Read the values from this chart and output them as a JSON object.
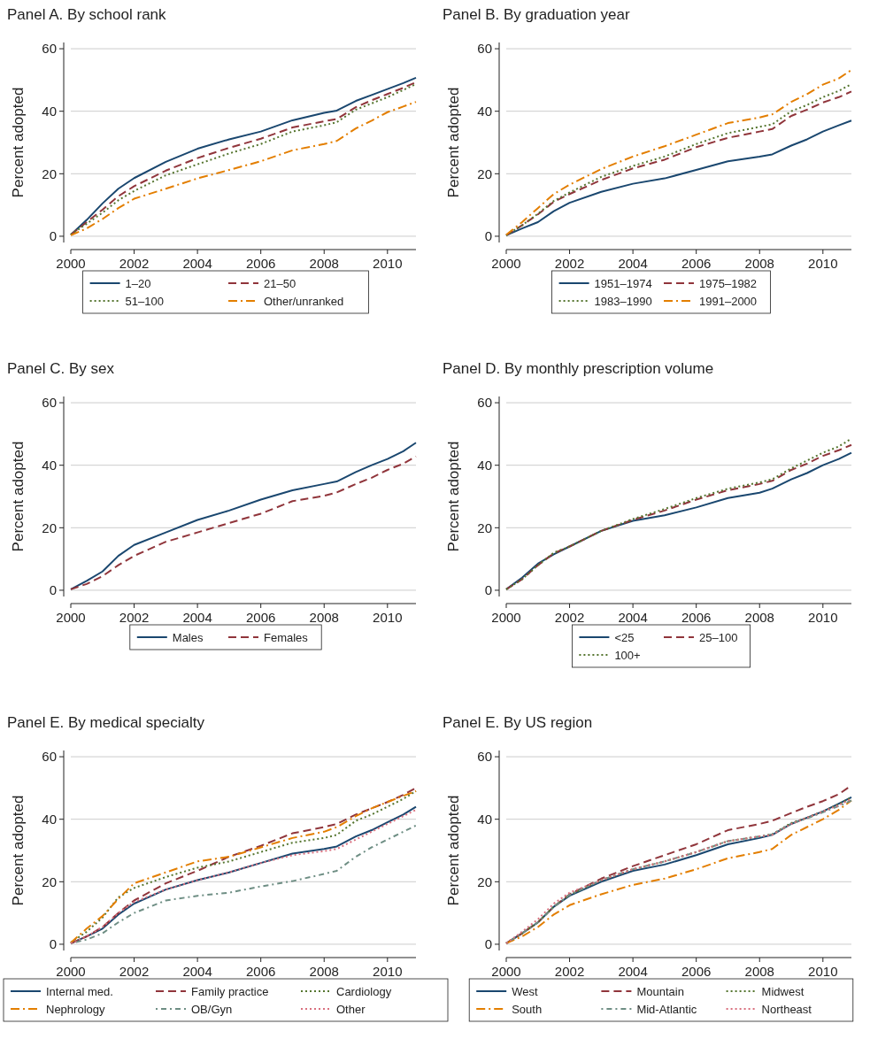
{
  "chart_data": [
    {
      "type": "line",
      "title": "Panel A. By school rank",
      "ylabel": "Percent adopted",
      "x": [
        2000,
        2000.5,
        2001,
        2001.5,
        2002,
        2003,
        2004,
        2005,
        2006,
        2007,
        2008,
        2008.4,
        2009,
        2009.5,
        2010,
        2010.5,
        2010.9
      ],
      "xlim": [
        2000,
        2010.9
      ],
      "xticks": [
        2000,
        2002,
        2004,
        2006,
        2008,
        2010
      ],
      "ylim": [
        -2,
        62
      ],
      "yticks": [
        0,
        20,
        40,
        60
      ],
      "grid": "y",
      "legend": "bottom",
      "series": [
        {
          "name": "1–20",
          "color": "#1a476f",
          "line_style": "solid",
          "values": [
            0.5,
            5.2,
            10.5,
            15.2,
            18.6,
            23.8,
            28,
            31,
            33.5,
            37.1,
            39.5,
            40.2,
            43.3,
            45.2,
            47.1,
            49,
            50.7
          ]
        },
        {
          "name": "21–50",
          "color": "#90353b",
          "line_style": "dashed",
          "values": [
            0.5,
            4.5,
            8.5,
            12.8,
            16,
            21,
            25,
            28.3,
            31.2,
            34.8,
            36.8,
            37.5,
            41.3,
            43.5,
            45.5,
            47.5,
            49.3
          ]
        },
        {
          "name": "51–100",
          "color": "#55752f",
          "line_style": "dotted",
          "values": [
            0.5,
            4,
            7.5,
            11.5,
            14.5,
            19.5,
            23,
            26.5,
            29.5,
            33.5,
            35.5,
            36.5,
            40.5,
            42.5,
            44.5,
            46.8,
            48.7
          ]
        },
        {
          "name": "Other/unranked",
          "color": "#e37e00",
          "line_style": "dashdot",
          "values": [
            0.3,
            2.5,
            5.5,
            9,
            12,
            15.2,
            18.5,
            21.2,
            24,
            27.5,
            29.5,
            30.5,
            34.5,
            37,
            39.7,
            41.5,
            43
          ]
        }
      ]
    },
    {
      "type": "line",
      "title": "Panel B. By graduation year",
      "ylabel": "Percent adopted",
      "x": [
        2000,
        2000.5,
        2001,
        2001.5,
        2002,
        2003,
        2004,
        2005,
        2006,
        2007,
        2008,
        2008.4,
        2009,
        2009.5,
        2010,
        2010.5,
        2010.9
      ],
      "xlim": [
        2000,
        2010.9
      ],
      "xticks": [
        2000,
        2002,
        2004,
        2006,
        2008,
        2010
      ],
      "ylim": [
        -2,
        62
      ],
      "yticks": [
        0,
        20,
        40,
        60
      ],
      "grid": "y",
      "legend": "bottom",
      "series": [
        {
          "name": "1951–1974",
          "color": "#1a476f",
          "line_style": "solid",
          "values": [
            0.3,
            2.5,
            4.5,
            8,
            10.7,
            14.2,
            16.8,
            18.5,
            21.2,
            24,
            25.5,
            26.2,
            29,
            31,
            33.5,
            35.5,
            37
          ]
        },
        {
          "name": "1975–1982",
          "color": "#90353b",
          "line_style": "dashed",
          "values": [
            0.3,
            3.5,
            7,
            11,
            13.5,
            18,
            21.7,
            24.5,
            28.5,
            31.5,
            33.5,
            34.3,
            38.5,
            40.5,
            42.8,
            44.5,
            46.3
          ]
        },
        {
          "name": "1983–1990",
          "color": "#55752f",
          "line_style": "dotted",
          "values": [
            0.3,
            3.5,
            7.2,
            11.3,
            14,
            19,
            22.5,
            25.5,
            29.5,
            33,
            35,
            35.8,
            40,
            42,
            44.5,
            46.5,
            48.7
          ]
        },
        {
          "name": "1991–2000",
          "color": "#e37e00",
          "line_style": "dashdot",
          "values": [
            0.5,
            4.5,
            9,
            13.5,
            16.5,
            21.5,
            25.5,
            28.8,
            32.5,
            36.2,
            38,
            39,
            43,
            45.5,
            48.5,
            50.5,
            53.2
          ]
        }
      ]
    },
    {
      "type": "line",
      "title": "Panel C. By sex",
      "ylabel": "Percent adopted",
      "x": [
        2000,
        2000.5,
        2001,
        2001.5,
        2002,
        2003,
        2004,
        2005,
        2006,
        2007,
        2008,
        2008.4,
        2009,
        2009.5,
        2010,
        2010.5,
        2010.9
      ],
      "xlim": [
        2000,
        2010.9
      ],
      "xticks": [
        2000,
        2002,
        2004,
        2006,
        2008,
        2010
      ],
      "ylim": [
        -2,
        62
      ],
      "yticks": [
        0,
        20,
        40,
        60
      ],
      "grid": "y",
      "legend": "bottom",
      "series": [
        {
          "name": "Males",
          "color": "#1a476f",
          "line_style": "solid",
          "values": [
            0.3,
            3,
            6,
            11,
            14.5,
            18.5,
            22.5,
            25.5,
            29,
            32,
            34,
            34.8,
            37.8,
            40,
            42,
            44.5,
            47.2
          ]
        },
        {
          "name": "Females",
          "color": "#90353b",
          "line_style": "dashed",
          "values": [
            0.3,
            2,
            4.5,
            8,
            11,
            15.5,
            18.5,
            21.5,
            24.5,
            28.5,
            30.2,
            31.3,
            34,
            36,
            38.5,
            40.5,
            42.8
          ]
        }
      ]
    },
    {
      "type": "line",
      "title": "Panel D. By monthly prescription volume",
      "ylabel": "Percent adopted",
      "x": [
        2000,
        2000.5,
        2001,
        2001.5,
        2002,
        2003,
        2004,
        2005,
        2006,
        2007,
        2008,
        2008.4,
        2009,
        2009.5,
        2010,
        2010.5,
        2010.9
      ],
      "xlim": [
        2000,
        2010.9
      ],
      "xticks": [
        2000,
        2002,
        2004,
        2006,
        2008,
        2010
      ],
      "ylim": [
        -2,
        62
      ],
      "yticks": [
        0,
        20,
        40,
        60
      ],
      "grid": "y",
      "legend": "bottom",
      "series": [
        {
          "name": "<25",
          "color": "#1a476f",
          "line_style": "solid",
          "values": [
            0.3,
            4,
            8.5,
            11.5,
            14,
            19,
            22.2,
            24,
            26.5,
            29.5,
            31.2,
            32.5,
            35.5,
            37.5,
            40,
            42,
            44
          ]
        },
        {
          "name": "25–100",
          "color": "#90353b",
          "line_style": "dashed",
          "values": [
            0.3,
            3.5,
            8,
            11.8,
            14,
            19,
            22.5,
            25.5,
            29,
            32,
            34,
            35,
            38.5,
            40.5,
            43,
            44.8,
            46.5
          ]
        },
        {
          "name": "100+",
          "color": "#55752f",
          "line_style": "dotted",
          "values": [
            0.3,
            3.5,
            8,
            12,
            14,
            19,
            22.8,
            26,
            29.5,
            32.5,
            34.5,
            35.5,
            39,
            41.5,
            44,
            46,
            48.5
          ]
        }
      ]
    },
    {
      "type": "line",
      "title": "Panel E. By medical specialty",
      "ylabel": "Percent adopted",
      "x": [
        2000,
        2000.5,
        2001,
        2001.5,
        2002,
        2003,
        2004,
        2005,
        2006,
        2007,
        2008,
        2008.4,
        2009,
        2009.5,
        2010,
        2010.5,
        2010.9
      ],
      "xlim": [
        2000,
        2010.9
      ],
      "xticks": [
        2000,
        2002,
        2004,
        2006,
        2008,
        2010
      ],
      "ylim": [
        -2,
        62
      ],
      "yticks": [
        0,
        20,
        40,
        60
      ],
      "grid": "y",
      "legend": "bottom",
      "series": [
        {
          "name": "Internal med.",
          "color": "#1a476f",
          "line_style": "solid",
          "values": [
            0.3,
            2.5,
            5,
            9.5,
            13,
            17.5,
            20.5,
            23,
            26,
            29,
            30.5,
            31.3,
            34.5,
            36.5,
            39,
            41.5,
            44
          ]
        },
        {
          "name": "Family practice",
          "color": "#90353b",
          "line_style": "dashed",
          "values": [
            0.3,
            2.5,
            5.5,
            10,
            14,
            19.5,
            23.5,
            28,
            31.5,
            35.5,
            37.5,
            38.5,
            41.5,
            43.5,
            45.5,
            47.8,
            50
          ]
        },
        {
          "name": "Cardiology",
          "color": "#55752f",
          "line_style": "dotted",
          "values": [
            0.5,
            4,
            8.5,
            15,
            18,
            21.5,
            24.5,
            26.5,
            29.5,
            32.5,
            34,
            35,
            39.5,
            41.5,
            44,
            46.5,
            49
          ]
        },
        {
          "name": "Nephrology",
          "color": "#e37e00",
          "line_style": "dashdot",
          "values": [
            0.5,
            5,
            9,
            14.5,
            19.5,
            23,
            26.5,
            28,
            31,
            34,
            36,
            37.5,
            41,
            43.5,
            45.5,
            47.5,
            49
          ]
        },
        {
          "name": "OB/Gyn",
          "color": "#6e8e84",
          "line_style": "dotdash",
          "values": [
            0.3,
            1.5,
            3.5,
            7,
            10,
            14,
            15.5,
            16.5,
            18.5,
            20.2,
            22.5,
            23.5,
            28,
            31,
            33.5,
            36,
            38
          ]
        },
        {
          "name": "Other",
          "color": "#d9707f",
          "line_style": "dotted",
          "values": [
            0.3,
            2.5,
            5.5,
            10,
            13.5,
            17.5,
            20.5,
            23,
            26,
            28.5,
            29.8,
            30.5,
            33.5,
            36,
            38.5,
            41,
            43
          ]
        }
      ]
    },
    {
      "type": "line",
      "title": "Panel E. By US region",
      "ylabel": "Percent adopted",
      "x": [
        2000,
        2000.5,
        2001,
        2001.5,
        2002,
        2003,
        2004,
        2005,
        2006,
        2007,
        2008,
        2008.4,
        2009,
        2009.5,
        2010,
        2010.5,
        2010.9
      ],
      "xlim": [
        2000,
        2010.9
      ],
      "xticks": [
        2000,
        2002,
        2004,
        2006,
        2008,
        2010
      ],
      "ylim": [
        -2,
        62
      ],
      "yticks": [
        0,
        20,
        40,
        60
      ],
      "grid": "y",
      "legend": "bottom",
      "series": [
        {
          "name": "West",
          "color": "#1a476f",
          "line_style": "solid",
          "values": [
            0.3,
            3.5,
            7,
            12,
            15.5,
            20,
            23.5,
            25.5,
            28.5,
            32,
            34,
            35,
            38.5,
            40.5,
            42.5,
            45,
            47
          ]
        },
        {
          "name": "Mountain",
          "color": "#90353b",
          "line_style": "dashed",
          "values": [
            0.3,
            3.5,
            7,
            12,
            16,
            21,
            25,
            28.5,
            32,
            36.5,
            38.5,
            39.5,
            42,
            44,
            45.8,
            48,
            50.8
          ]
        },
        {
          "name": "Midwest",
          "color": "#55752f",
          "line_style": "dotted",
          "values": [
            0.3,
            3.5,
            7,
            12,
            15.8,
            20.5,
            24,
            26.5,
            29.5,
            33,
            34.5,
            35.2,
            38.8,
            40.5,
            42.5,
            44.8,
            47
          ]
        },
        {
          "name": "South",
          "color": "#e37e00",
          "line_style": "dashdot",
          "values": [
            0.3,
            2.5,
            5.5,
            9.5,
            12.5,
            16,
            19,
            21,
            24,
            27.5,
            29.5,
            30.5,
            35,
            37.5,
            40,
            43,
            46
          ]
        },
        {
          "name": "Mid-Atlantic",
          "color": "#6e8e84",
          "line_style": "dotdash",
          "values": [
            0.3,
            3.5,
            7,
            12,
            15.8,
            20.5,
            24,
            26.5,
            29.5,
            33,
            34.5,
            35.2,
            38.5,
            40.3,
            42.2,
            44.2,
            46
          ]
        },
        {
          "name": "Northeast",
          "color": "#d9707f",
          "line_style": "dotted",
          "values": [
            0.3,
            4,
            8,
            13,
            16.5,
            20.5,
            24,
            26.5,
            29.5,
            33,
            34.5,
            35,
            38.5,
            40.5,
            42.5,
            44.5,
            46.5
          ]
        }
      ]
    }
  ]
}
